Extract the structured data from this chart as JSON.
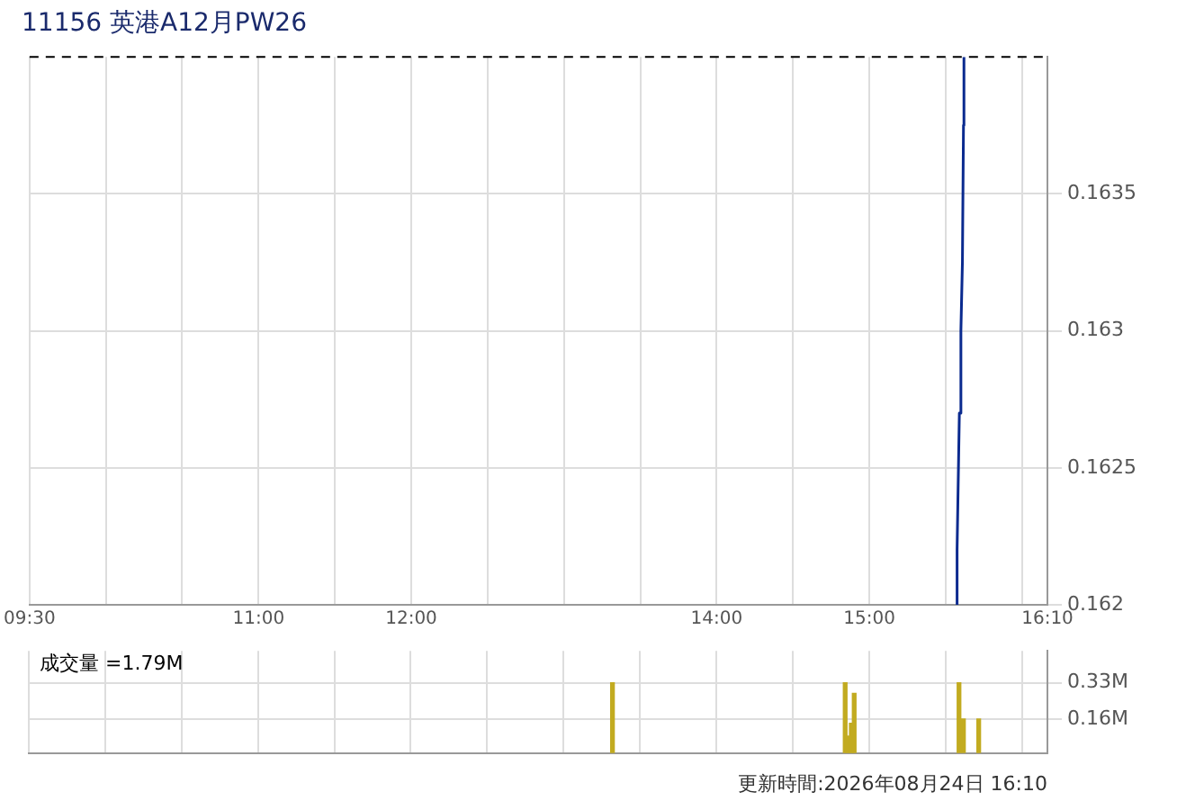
{
  "chart_data": [
    {
      "type": "line",
      "title": "11156 英港A12月PW26",
      "x": [
        15.57,
        15.575,
        15.59,
        15.6,
        15.61,
        15.617,
        15.62
      ],
      "series": [
        {
          "color": "#0a2a8f",
          "values": [
            0.162,
            0.1622,
            0.1627,
            0.163,
            0.16325,
            0.16375,
            0.164
          ]
        }
      ],
      "xlim": [
        9.5,
        16.1667
      ],
      "xticks": [
        {
          "value": 9.5,
          "label": "09:30"
        },
        {
          "value": 10,
          "label": null
        },
        {
          "value": 10.5,
          "label": null
        },
        {
          "value": 11,
          "label": "11:00"
        },
        {
          "value": 11.5,
          "label": null
        },
        {
          "value": 12,
          "label": "12:00"
        },
        {
          "value": 12.5,
          "label": null
        },
        {
          "value": 13,
          "label": null
        },
        {
          "value": 13.5,
          "label": null
        },
        {
          "value": 14,
          "label": "14:00"
        },
        {
          "value": 14.5,
          "label": null
        },
        {
          "value": 15,
          "label": "15:00"
        },
        {
          "value": 15.5,
          "label": null
        },
        {
          "value": 16,
          "label": null
        },
        {
          "value": 16.1667,
          "label": "16:10"
        }
      ],
      "ylim": [
        0.162,
        0.164
      ],
      "yticks": [
        0.162,
        0.1625,
        0.163,
        0.1635
      ],
      "ref_lines": [
        {
          "axis": "y",
          "value": 0.164,
          "color": "#000000",
          "line_style": "dashed"
        }
      ],
      "grid": true,
      "legend": false,
      "marker": "none",
      "line_style": "solid",
      "annotations": [
        "更新時間:2026年08月24日 16:10"
      ]
    },
    {
      "type": "bar",
      "x": [
        13.32,
        14.843,
        14.863,
        14.883,
        14.902,
        15.588,
        15.617,
        15.717
      ],
      "values": [
        0.33,
        0.33,
        0.08,
        0.14,
        0.28,
        0.33,
        0.16,
        0.16
      ],
      "color": "#c2ab20",
      "xlim": [
        9.5,
        16.1667
      ],
      "xticks": [
        {
          "value": 9.5,
          "label": null
        },
        {
          "value": 10,
          "label": null
        },
        {
          "value": 10.5,
          "label": null
        },
        {
          "value": 11,
          "label": null
        },
        {
          "value": 11.5,
          "label": null
        },
        {
          "value": 12,
          "label": null
        },
        {
          "value": 12.5,
          "label": null
        },
        {
          "value": 13,
          "label": null
        },
        {
          "value": 13.5,
          "label": null
        },
        {
          "value": 14,
          "label": null
        },
        {
          "value": 14.5,
          "label": null
        },
        {
          "value": 15,
          "label": null
        },
        {
          "value": 15.5,
          "label": null
        },
        {
          "value": 16,
          "label": null
        },
        {
          "value": 16.1667,
          "label": null
        }
      ],
      "ylim": [
        0,
        0.48
      ],
      "yticks": [
        {
          "value": 0.16,
          "label": "0.16M"
        },
        {
          "value": 0.33,
          "label": "0.33M"
        }
      ],
      "grid": true,
      "legend": false,
      "tick_labels": "y",
      "annotations": [
        "成交量 =1.79M"
      ]
    }
  ]
}
